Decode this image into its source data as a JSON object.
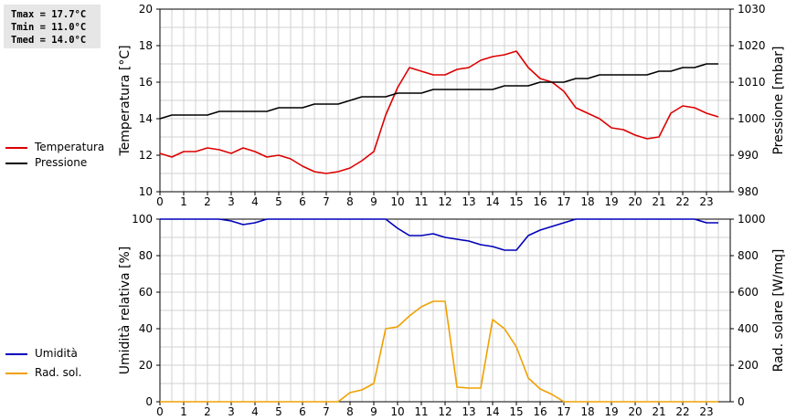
{
  "stats": {
    "tmax": "Tmax = 17.7°C",
    "tmin": "Tmin = 11.0°C",
    "tmed": "Tmed = 14.0°C"
  },
  "legend": {
    "temperature": {
      "label": "Temperatura",
      "color": "#dd0000"
    },
    "pressure": {
      "label": "Pressione",
      "color": "#000000"
    },
    "humidity": {
      "label": "Umidità",
      "color": "#0000bb"
    },
    "radiation": {
      "label": "Rad. sol.",
      "color": "#f0a000"
    }
  },
  "chart_data": [
    {
      "type": "line",
      "grid": true,
      "xlim": [
        0,
        24
      ],
      "x_ticks": [
        0,
        1,
        2,
        3,
        4,
        5,
        6,
        7,
        8,
        9,
        10,
        11,
        12,
        13,
        14,
        15,
        16,
        17,
        18,
        19,
        20,
        21,
        22,
        23
      ],
      "ylabel": "Temperatura [°C]",
      "ylim": [
        10,
        20
      ],
      "y_ticks": [
        10,
        12,
        14,
        16,
        18,
        20
      ],
      "y2label": "Pressione [mbar]",
      "y2lim": [
        980,
        1030
      ],
      "y2_ticks": [
        980,
        990,
        1000,
        1010,
        1020,
        1030
      ],
      "series": [
        {
          "name": "Temperatura",
          "axis": "left",
          "color": "#dd0000",
          "x": [
            0,
            0.5,
            1,
            1.5,
            2,
            2.5,
            3,
            3.5,
            4,
            4.5,
            5,
            5.5,
            6,
            6.5,
            7,
            7.5,
            8,
            8.5,
            9,
            9.5,
            10,
            10.5,
            11,
            11.5,
            12,
            12.5,
            13,
            13.5,
            14,
            14.5,
            15,
            15.5,
            16,
            16.5,
            17,
            17.5,
            18,
            18.5,
            19,
            19.5,
            20,
            20.5,
            21,
            21.5,
            22,
            22.5,
            23,
            23.5
          ],
          "values": [
            12.1,
            11.9,
            12.2,
            12.2,
            12.4,
            12.3,
            12.1,
            12.4,
            12.2,
            11.9,
            12.0,
            11.8,
            11.4,
            11.1,
            11.0,
            11.1,
            11.3,
            11.7,
            12.2,
            14.2,
            15.7,
            16.8,
            16.6,
            16.4,
            16.4,
            16.7,
            16.8,
            17.2,
            17.4,
            17.5,
            17.7,
            16.8,
            16.2,
            16.0,
            15.5,
            14.6,
            14.3,
            14.0,
            13.5,
            13.4,
            13.1,
            12.9,
            13.0,
            14.3,
            14.7,
            14.6,
            14.3,
            14.1
          ]
        },
        {
          "name": "Pressione",
          "axis": "right",
          "color": "#000000",
          "x": [
            0,
            0.5,
            1,
            1.5,
            2,
            2.5,
            3,
            3.5,
            4,
            4.5,
            5,
            5.5,
            6,
            6.5,
            7,
            7.5,
            8,
            8.5,
            9,
            9.5,
            10,
            10.5,
            11,
            11.5,
            12,
            12.5,
            13,
            13.5,
            14,
            14.5,
            15,
            15.5,
            16,
            16.5,
            17,
            17.5,
            18,
            18.5,
            19,
            19.5,
            20,
            20.5,
            21,
            21.5,
            22,
            22.5,
            23,
            23.5
          ],
          "values": [
            1000,
            1001,
            1001,
            1001,
            1001,
            1002,
            1002,
            1002,
            1002,
            1002,
            1003,
            1003,
            1003,
            1004,
            1004,
            1004,
            1005,
            1006,
            1006,
            1006,
            1007,
            1007,
            1007,
            1008,
            1008,
            1008,
            1008,
            1008,
            1008,
            1009,
            1009,
            1009,
            1010,
            1010,
            1010,
            1011,
            1011,
            1012,
            1012,
            1012,
            1012,
            1012,
            1013,
            1013,
            1014,
            1014,
            1015,
            1015
          ]
        }
      ]
    },
    {
      "type": "line",
      "grid": true,
      "xlim": [
        0,
        24
      ],
      "x_ticks": [
        0,
        1,
        2,
        3,
        4,
        5,
        6,
        7,
        8,
        9,
        10,
        11,
        12,
        13,
        14,
        15,
        16,
        17,
        18,
        19,
        20,
        21,
        22,
        23
      ],
      "ylabel": "Umidità relativa [%]",
      "ylim": [
        0,
        100
      ],
      "y_ticks": [
        0,
        20,
        40,
        60,
        80,
        100
      ],
      "y2label": "Rad. solare [W/mq]",
      "y2lim": [
        0,
        1000
      ],
      "y2_ticks": [
        0,
        200,
        400,
        600,
        800,
        1000
      ],
      "series": [
        {
          "name": "Umidità",
          "axis": "left",
          "color": "#0000bb",
          "x": [
            0,
            0.5,
            1,
            1.5,
            2,
            2.5,
            3,
            3.5,
            4,
            4.5,
            5,
            5.5,
            6,
            6.5,
            7,
            7.5,
            8,
            8.5,
            9,
            9.5,
            10,
            10.5,
            11,
            11.5,
            12,
            12.5,
            13,
            13.5,
            14,
            14.5,
            15,
            15.5,
            16,
            16.5,
            17,
            17.5,
            18,
            18.5,
            19,
            19.5,
            20,
            20.5,
            21,
            21.5,
            22,
            22.5,
            23,
            23.5
          ],
          "values": [
            100,
            100,
            100,
            100,
            100,
            100,
            99,
            97,
            98,
            100,
            100,
            100,
            100,
            100,
            100,
            100,
            100,
            100,
            100,
            100,
            95,
            91,
            91,
            92,
            90,
            89,
            88,
            86,
            85,
            83,
            83,
            91,
            94,
            96,
            98,
            100,
            100,
            100,
            100,
            100,
            100,
            100,
            100,
            100,
            100,
            100,
            98,
            98
          ]
        },
        {
          "name": "Rad. sol.",
          "axis": "right",
          "color": "#f0a000",
          "x": [
            0,
            0.5,
            1,
            1.5,
            2,
            2.5,
            3,
            3.5,
            4,
            4.5,
            5,
            5.5,
            6,
            6.5,
            7,
            7.5,
            8,
            8.5,
            9,
            9.5,
            10,
            10.5,
            11,
            11.5,
            12,
            12.5,
            13,
            13.5,
            14,
            14.5,
            15,
            15.5,
            16,
            16.5,
            17,
            17.5,
            18,
            18.5,
            19,
            19.5,
            20,
            20.5,
            21,
            21.5,
            22,
            22.5,
            23,
            23.5
          ],
          "values": [
            0,
            0,
            0,
            0,
            0,
            0,
            0,
            0,
            0,
            0,
            0,
            0,
            0,
            0,
            0,
            0,
            50,
            65,
            100,
            400,
            410,
            470,
            520,
            550,
            550,
            80,
            75,
            75,
            450,
            400,
            300,
            130,
            70,
            40,
            0,
            0,
            0,
            0,
            0,
            0,
            0,
            0,
            0,
            0,
            0,
            0,
            0,
            0
          ]
        }
      ]
    }
  ]
}
